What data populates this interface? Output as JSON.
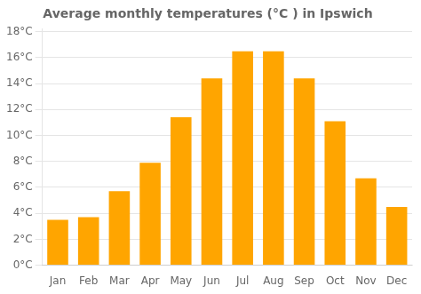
{
  "chart_data": {
    "type": "bar",
    "title": "Average monthly temperatures (°C ) in Ipswich",
    "categories": [
      "Jan",
      "Feb",
      "Mar",
      "Apr",
      "May",
      "Jun",
      "Jul",
      "Aug",
      "Sep",
      "Oct",
      "Nov",
      "Dec"
    ],
    "values": [
      3.5,
      3.7,
      5.7,
      7.9,
      11.4,
      14.4,
      16.5,
      16.5,
      14.4,
      11.1,
      6.7,
      4.5
    ],
    "color": "#FFA500",
    "ylim": [
      0,
      18.2
    ],
    "yticks": [
      {
        "value": 0,
        "label": "0°C"
      },
      {
        "value": 2,
        "label": "2°C"
      },
      {
        "value": 4,
        "label": "4°C"
      },
      {
        "value": 6,
        "label": "6°C"
      },
      {
        "value": 8,
        "label": "8°C"
      },
      {
        "value": 10,
        "label": "10°C"
      },
      {
        "value": 12,
        "label": "12°C"
      },
      {
        "value": 14,
        "label": "14°C"
      },
      {
        "value": 16,
        "label": "16°C"
      },
      {
        "value": 18,
        "label": "18°C"
      }
    ],
    "grid": true
  }
}
